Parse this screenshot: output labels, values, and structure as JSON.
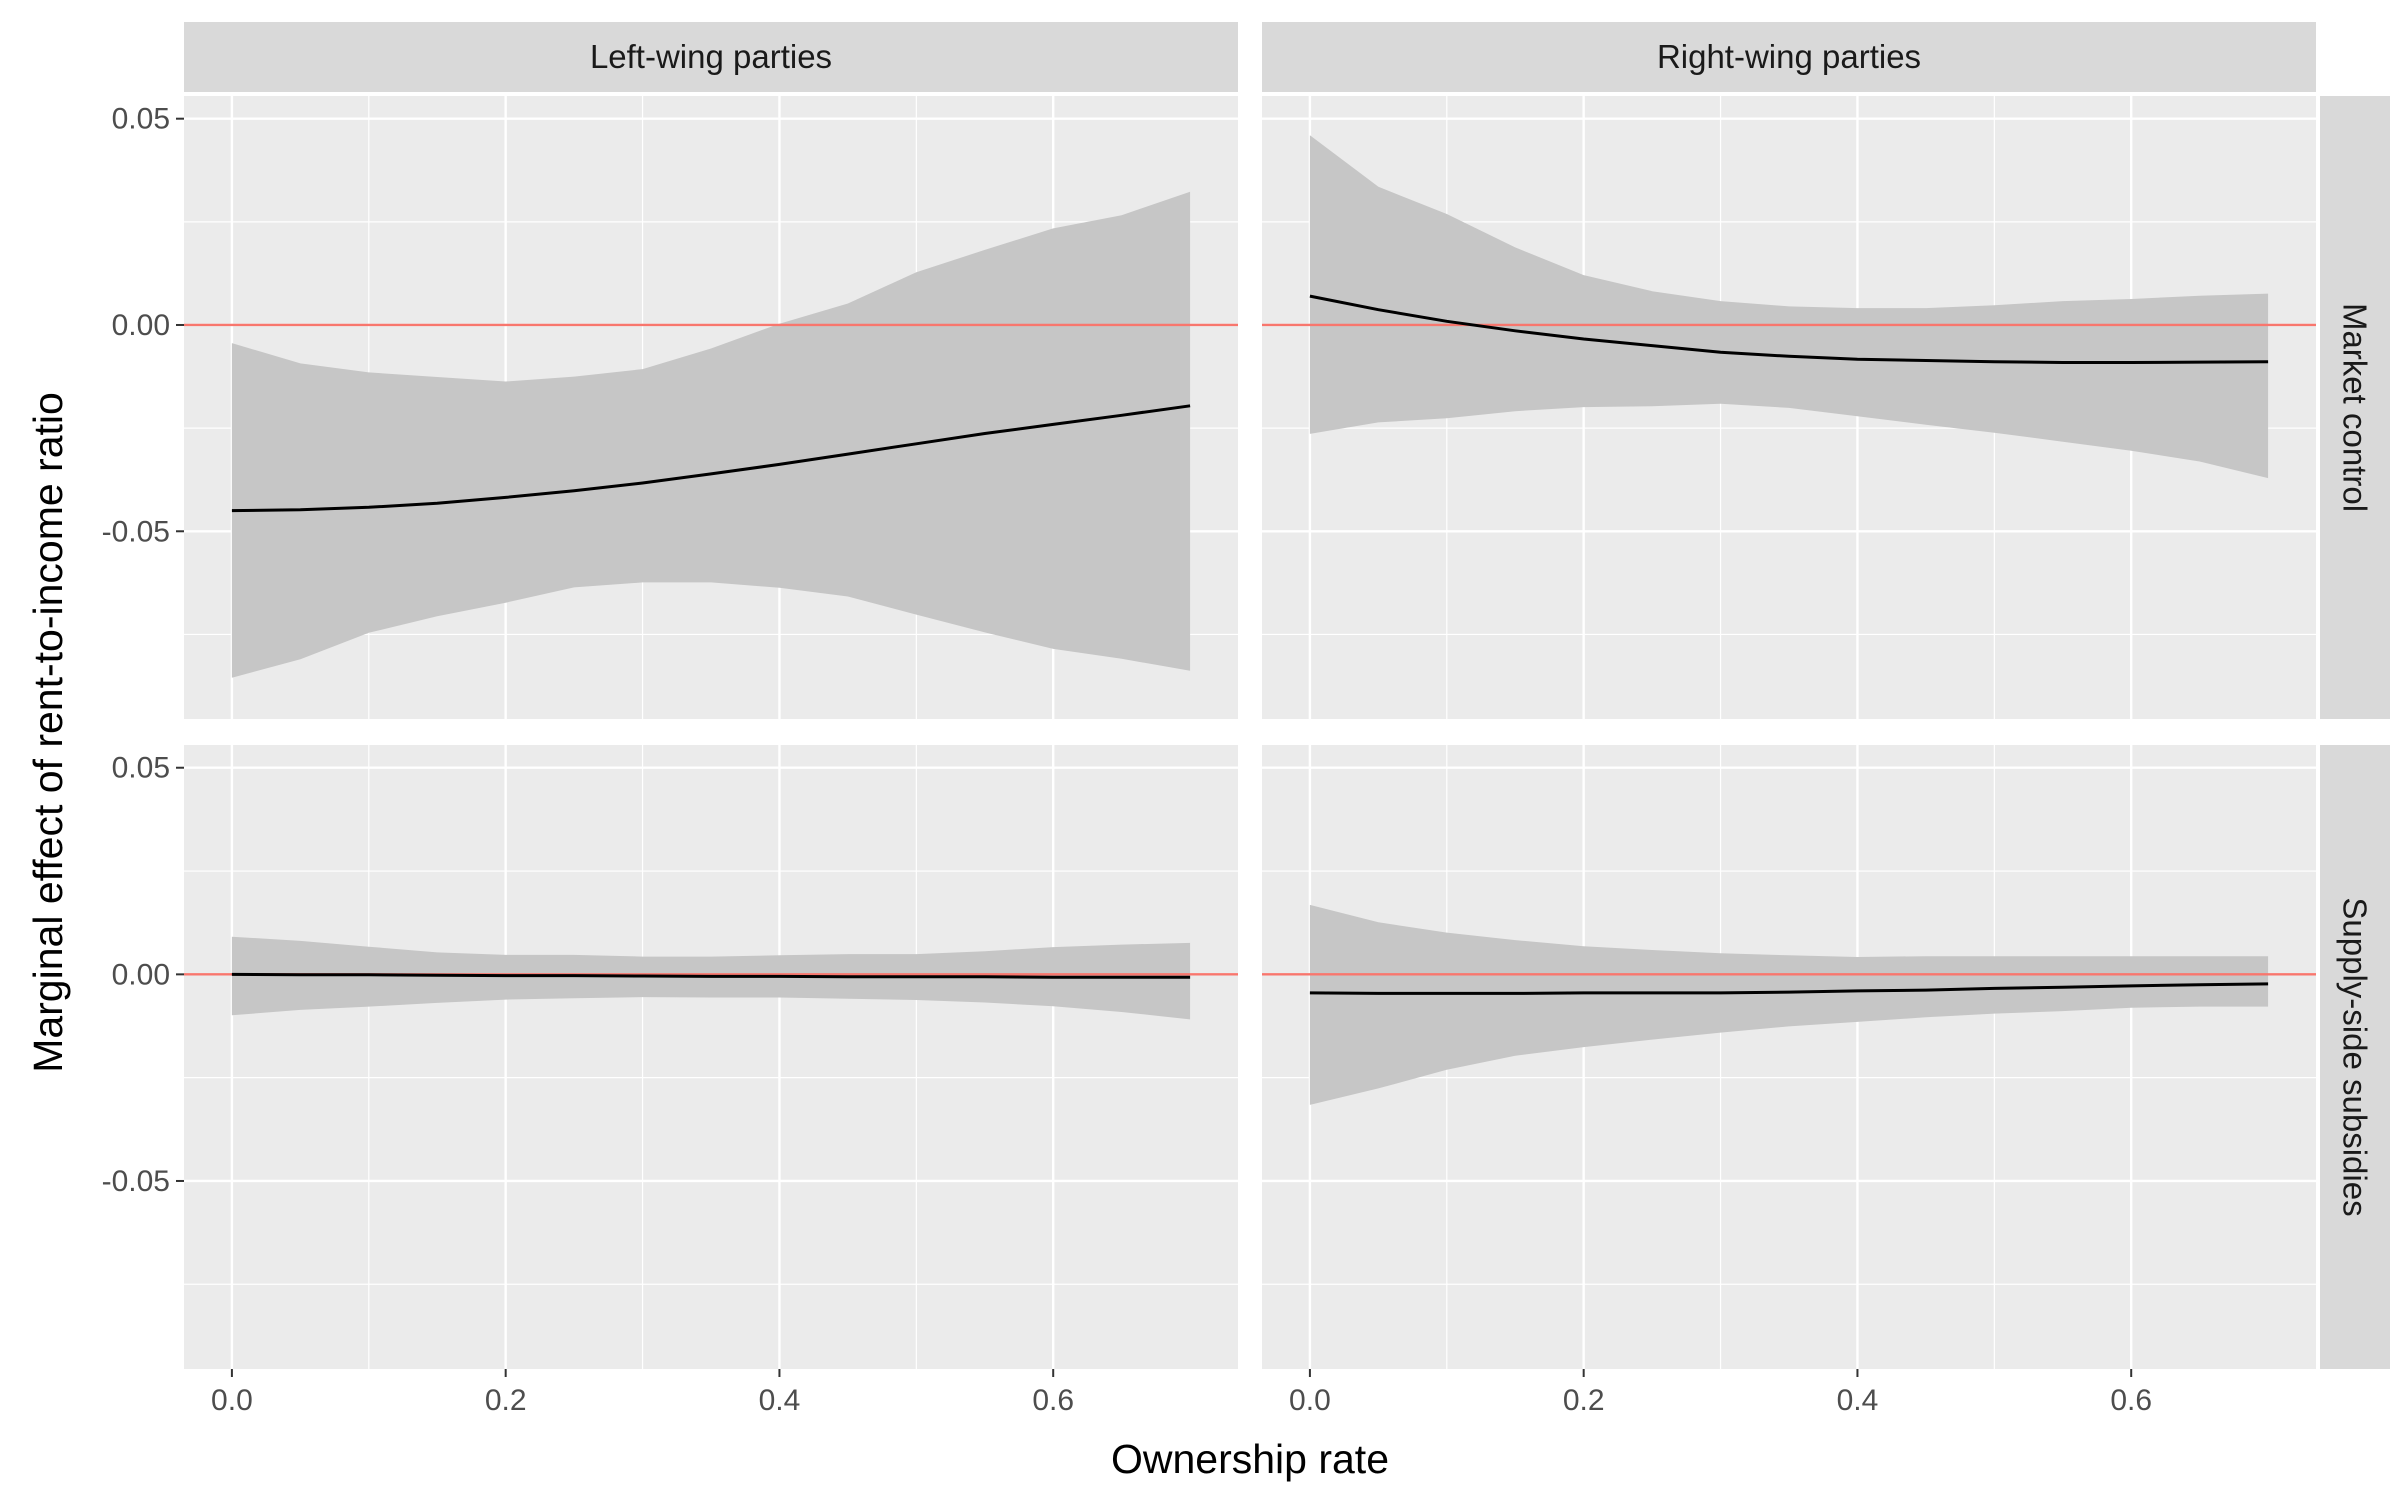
{
  "chart_data": {
    "type": "line",
    "xlabel": "Ownership rate",
    "ylabel": "Marginal effect of rent-to-income ratio",
    "xlim": [
      -0.035,
      0.735
    ],
    "ylim": [
      -0.0955,
      0.0555
    ],
    "x_ticks": [
      "0.0",
      "0.2",
      "0.4",
      "0.6"
    ],
    "x_tick_values": [
      0,
      0.2,
      0.4,
      0.6
    ],
    "y_ticks": [
      "-0.05",
      "0.00",
      "0.05"
    ],
    "y_tick_values": [
      -0.05,
      0,
      0.05
    ],
    "column_facets": [
      "Left-wing parties",
      "Right-wing parties"
    ],
    "row_facets": [
      "Market control",
      "Supply-side subsidies"
    ],
    "reference_line": {
      "y": 0,
      "color": "#f8766d"
    },
    "colors": {
      "panel_bg": "#ebebeb",
      "strip_bg": "#d9d9d9",
      "ribbon": "#c6c6c6",
      "line": "#000000",
      "grid": "#ffffff"
    },
    "grid": true,
    "panels": [
      {
        "column": "Left-wing parties",
        "row": "Market control",
        "x": [
          0,
          0.05,
          0.1,
          0.15,
          0.2,
          0.25,
          0.3,
          0.35,
          0.4,
          0.45,
          0.5,
          0.55,
          0.6,
          0.65,
          0.7
        ],
        "estimate": [
          -0.045,
          -0.0448,
          -0.0442,
          -0.0432,
          -0.0418,
          -0.0402,
          -0.0383,
          -0.0361,
          -0.0338,
          -0.0313,
          -0.0288,
          -0.0263,
          -0.0241,
          -0.0219,
          -0.0196
        ],
        "lower": [
          -0.0855,
          -0.081,
          -0.0746,
          -0.0706,
          -0.0673,
          -0.0636,
          -0.0624,
          -0.0624,
          -0.0637,
          -0.0658,
          -0.0702,
          -0.0745,
          -0.0785,
          -0.0809,
          -0.0838
        ],
        "upper": [
          -0.0044,
          -0.0093,
          -0.0115,
          -0.0126,
          -0.0137,
          -0.0125,
          -0.0107,
          -0.0057,
          0.0003,
          0.0052,
          0.0128,
          0.0182,
          0.0234,
          0.0266,
          0.0323
        ]
      },
      {
        "column": "Right-wing parties",
        "row": "Market control",
        "x": [
          0,
          0.05,
          0.1,
          0.15,
          0.2,
          0.25,
          0.3,
          0.35,
          0.4,
          0.45,
          0.5,
          0.55,
          0.6,
          0.65,
          0.7
        ],
        "estimate": [
          0.007,
          0.0037,
          0.0009,
          -0.0014,
          -0.0034,
          -0.005,
          -0.0066,
          -0.0076,
          -0.0083,
          -0.0086,
          -0.0089,
          -0.0091,
          -0.0091,
          -0.009,
          -0.0089
        ],
        "lower": [
          -0.0264,
          -0.0236,
          -0.0226,
          -0.0209,
          -0.0199,
          -0.0197,
          -0.0191,
          -0.0201,
          -0.0221,
          -0.0242,
          -0.0261,
          -0.0283,
          -0.0305,
          -0.0331,
          -0.0371
        ],
        "upper": [
          0.046,
          0.0335,
          0.0269,
          0.0188,
          0.0121,
          0.0082,
          0.0058,
          0.0045,
          0.0041,
          0.0041,
          0.0048,
          0.0058,
          0.0063,
          0.0071,
          0.0076
        ]
      },
      {
        "column": "Left-wing parties",
        "row": "Supply-side subsidies",
        "x": [
          0,
          0.05,
          0.1,
          0.15,
          0.2,
          0.25,
          0.3,
          0.35,
          0.4,
          0.45,
          0.5,
          0.55,
          0.6,
          0.65,
          0.7
        ],
        "estimate": [
          0,
          -0.0001,
          -0.0001,
          -0.0002,
          -0.0003,
          -0.0003,
          -0.0004,
          -0.0005,
          -0.0005,
          -0.0006,
          -0.0006,
          -0.0006,
          -0.0007,
          -0.0007,
          -0.0007
        ],
        "lower": [
          -0.0099,
          -0.0086,
          -0.0078,
          -0.0069,
          -0.0061,
          -0.0058,
          -0.0055,
          -0.0056,
          -0.0056,
          -0.0059,
          -0.0062,
          -0.0068,
          -0.0077,
          -0.0091,
          -0.0109
        ],
        "upper": [
          0.0091,
          0.0081,
          0.0067,
          0.0053,
          0.0047,
          0.0047,
          0.0043,
          0.0043,
          0.0046,
          0.0049,
          0.0049,
          0.0056,
          0.0066,
          0.0072,
          0.0076
        ]
      },
      {
        "column": "Right-wing parties",
        "row": "Supply-side subsidies",
        "x": [
          0,
          0.05,
          0.1,
          0.15,
          0.2,
          0.25,
          0.3,
          0.35,
          0.4,
          0.45,
          0.5,
          0.55,
          0.6,
          0.65,
          0.7
        ],
        "estimate": [
          -0.0045,
          -0.0046,
          -0.0046,
          -0.0046,
          -0.0045,
          -0.0045,
          -0.0045,
          -0.0043,
          -0.004,
          -0.0038,
          -0.0034,
          -0.0031,
          -0.0028,
          -0.0025,
          -0.0023
        ],
        "lower": [
          -0.0316,
          -0.0276,
          -0.0231,
          -0.0197,
          -0.0176,
          -0.0158,
          -0.0141,
          -0.0126,
          -0.0115,
          -0.0104,
          -0.0095,
          -0.0089,
          -0.0081,
          -0.0078,
          -0.0078
        ],
        "upper": [
          0.0168,
          0.0126,
          0.0101,
          0.0083,
          0.0068,
          0.0059,
          0.0051,
          0.0046,
          0.0042,
          0.0044,
          0.0044,
          0.0044,
          0.0044,
          0.0044,
          0.0044
        ]
      }
    ]
  }
}
